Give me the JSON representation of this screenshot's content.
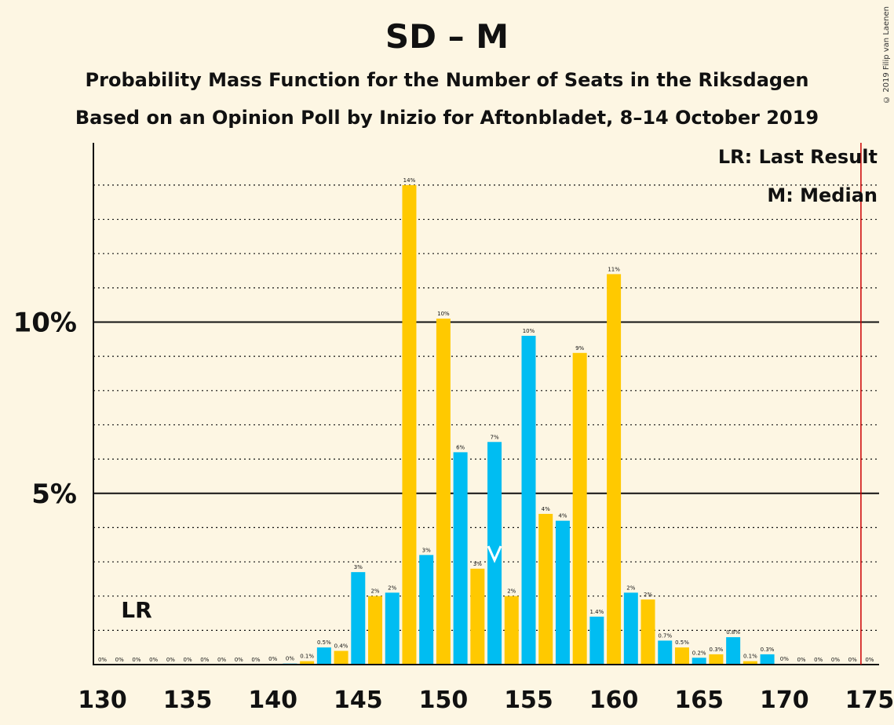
{
  "header": {
    "title": "SD – M",
    "subtitle": "Probability Mass Function for the Number of Seats in the Riksdagen",
    "subtitle2": "Based on an Opinion Poll by Inizio for Aftonbladet, 8–14 October 2019",
    "copyright": "© 2019 Filip van Laenen"
  },
  "legend": {
    "lr": "LR: Last Result",
    "median": "M: Median"
  },
  "colors": {
    "blue": "#00bdf2",
    "yellow": "#ffc900",
    "majority_line": "#cc0000",
    "background": "#fdf6e3"
  },
  "chart_data": {
    "type": "bar",
    "xlabel": "",
    "ylabel": "",
    "x_ticks": [
      130,
      135,
      140,
      145,
      150,
      155,
      160,
      165,
      170,
      175
    ],
    "y_ticks": [
      {
        "value": 5,
        "label": "5%"
      },
      {
        "value": 10,
        "label": "10%"
      }
    ],
    "ylim": [
      0,
      15.2
    ],
    "xlim": [
      129.5,
      175.5
    ],
    "grid": "dotted horizontal every 1%",
    "last_result": {
      "seat": 132,
      "label": "LR"
    },
    "median": 153,
    "majority_line": 175,
    "bars": [
      {
        "seat": 130,
        "value": 0,
        "label": "0%"
      },
      {
        "seat": 131,
        "value": 0,
        "label": "0%"
      },
      {
        "seat": 132,
        "value": 0,
        "label": "0%"
      },
      {
        "seat": 133,
        "value": 0,
        "label": "0%"
      },
      {
        "seat": 134,
        "value": 0,
        "label": "0%"
      },
      {
        "seat": 135,
        "value": 0,
        "label": "0%"
      },
      {
        "seat": 136,
        "value": 0,
        "label": "0%"
      },
      {
        "seat": 137,
        "value": 0,
        "label": "0%"
      },
      {
        "seat": 138,
        "value": 0,
        "label": "0%"
      },
      {
        "seat": 139,
        "value": 0,
        "label": "0%"
      },
      {
        "seat": 140,
        "value": 0.02,
        "label": "0%"
      },
      {
        "seat": 141,
        "value": 0.03,
        "label": "0%"
      },
      {
        "seat": 142,
        "value": 0.1,
        "label": "0.1%"
      },
      {
        "seat": 143,
        "value": 0.5,
        "label": "0.5%"
      },
      {
        "seat": 144,
        "value": 0.4,
        "label": "0.4%"
      },
      {
        "seat": 145,
        "value": 2.7,
        "label": "3%"
      },
      {
        "seat": 146,
        "value": 2.0,
        "label": "2%"
      },
      {
        "seat": 147,
        "value": 2.1,
        "label": "2%"
      },
      {
        "seat": 148,
        "value": 14.0,
        "label": "14%"
      },
      {
        "seat": 149,
        "value": 3.2,
        "label": "3%"
      },
      {
        "seat": 150,
        "value": 10.1,
        "label": "10%"
      },
      {
        "seat": 151,
        "value": 6.2,
        "label": "6%"
      },
      {
        "seat": 152,
        "value": 2.8,
        "label": "3%"
      },
      {
        "seat": 153,
        "value": 6.5,
        "label": "7%"
      },
      {
        "seat": 154,
        "value": 2.0,
        "label": "2%"
      },
      {
        "seat": 155,
        "value": 9.6,
        "label": "10%"
      },
      {
        "seat": 156,
        "value": 4.4,
        "label": "4%"
      },
      {
        "seat": 157,
        "value": 4.2,
        "label": "4%"
      },
      {
        "seat": 158,
        "value": 9.1,
        "label": "9%"
      },
      {
        "seat": 159,
        "value": 1.4,
        "label": "1.4%"
      },
      {
        "seat": 160,
        "value": 11.4,
        "label": "11%"
      },
      {
        "seat": 161,
        "value": 2.1,
        "label": "2%"
      },
      {
        "seat": 162,
        "value": 1.9,
        "label": "2%"
      },
      {
        "seat": 163,
        "value": 0.7,
        "label": "0.7%"
      },
      {
        "seat": 164,
        "value": 0.5,
        "label": "0.5%"
      },
      {
        "seat": 165,
        "value": 0.2,
        "label": "0.2%"
      },
      {
        "seat": 166,
        "value": 0.3,
        "label": "0.3%"
      },
      {
        "seat": 167,
        "value": 0.8,
        "label": "0.8%"
      },
      {
        "seat": 168,
        "value": 0.1,
        "label": "0.1%"
      },
      {
        "seat": 169,
        "value": 0.3,
        "label": "0.3%"
      },
      {
        "seat": 170,
        "value": 0.02,
        "label": "0%"
      },
      {
        "seat": 171,
        "value": 0,
        "label": "0%"
      },
      {
        "seat": 172,
        "value": 0,
        "label": "0%"
      },
      {
        "seat": 173,
        "value": 0,
        "label": "0%"
      },
      {
        "seat": 174,
        "value": 0,
        "label": "0%"
      },
      {
        "seat": 175,
        "value": 0,
        "label": "0%"
      }
    ]
  }
}
